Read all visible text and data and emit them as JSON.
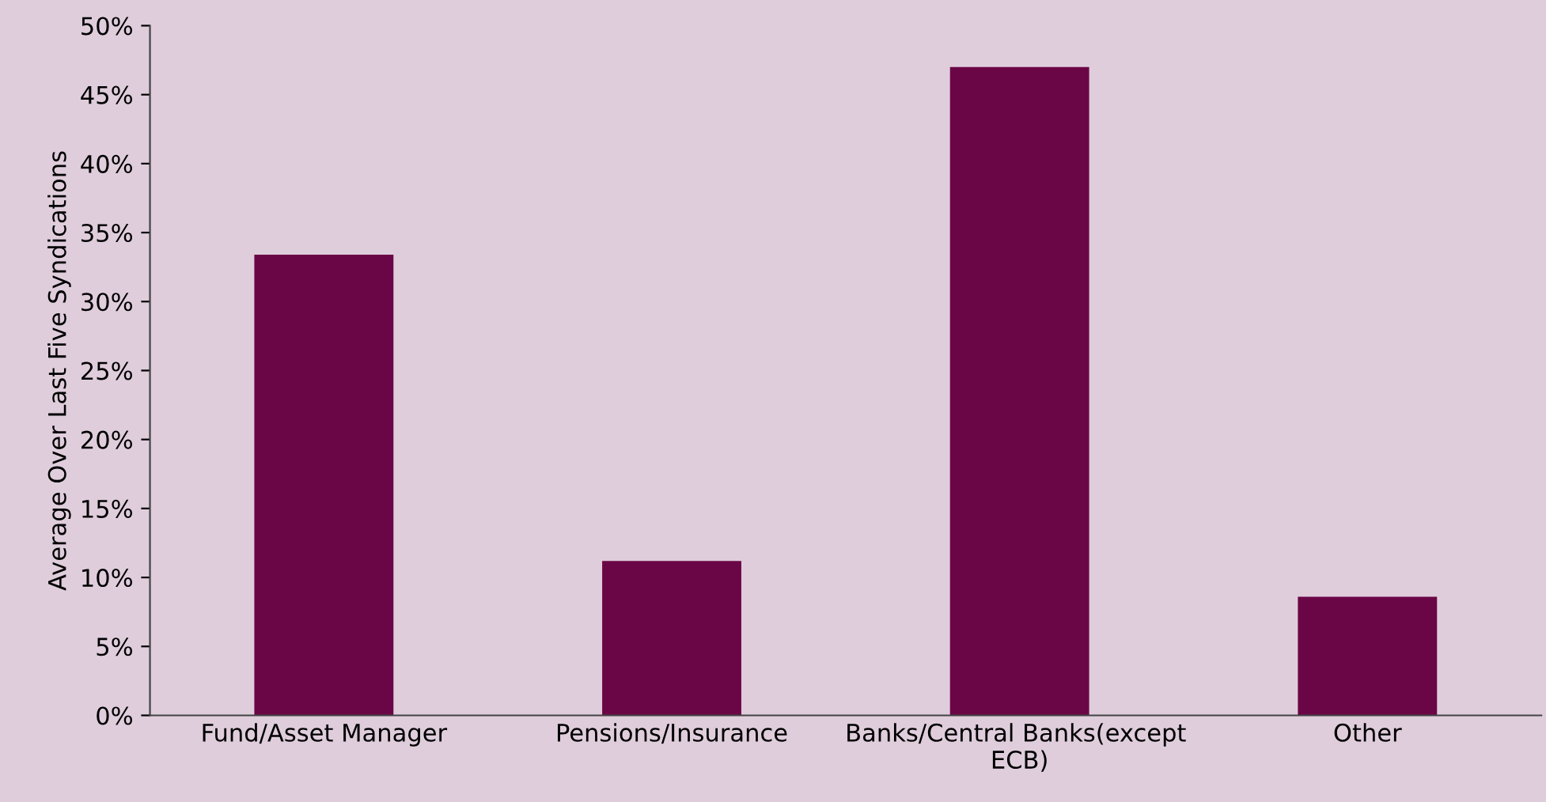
{
  "chart_data": {
    "type": "bar",
    "ylabel": "Average Over Last Five Syndications",
    "categories": [
      "Fund/Asset Manager",
      "Pensions/Insurance",
      "Banks/Central Banks(except ECB)",
      "Other"
    ],
    "values": [
      33.4,
      11.2,
      47.0,
      8.6
    ],
    "color": "#6b0646",
    "ylim": [
      0,
      50
    ],
    "yticks": [
      {
        "value": 0,
        "label": "0%"
      },
      {
        "value": 5,
        "label": "5%"
      },
      {
        "value": 10,
        "label": "10%"
      },
      {
        "value": 15,
        "label": "15%"
      },
      {
        "value": 20,
        "label": "20%"
      },
      {
        "value": 25,
        "label": "25%"
      },
      {
        "value": 30,
        "label": "30%"
      },
      {
        "value": 35,
        "label": "35%"
      },
      {
        "value": 40,
        "label": "40%"
      },
      {
        "value": 45,
        "label": "45%"
      },
      {
        "value": 50,
        "label": "50%"
      }
    ],
    "grid": false,
    "legend": false
  }
}
